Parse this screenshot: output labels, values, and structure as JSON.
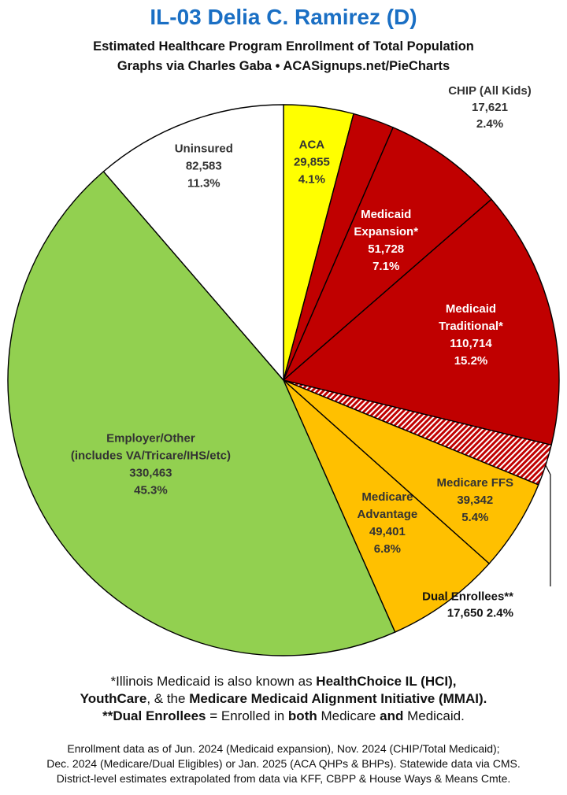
{
  "header": {
    "title": "IL-03 Delia C. Ramirez (D)",
    "title_color": "#1a6fc4",
    "subtitle_1": "Estimated Healthcare Program Enrollment of Total Population",
    "subtitle_2": "Graphs via Charles Gaba  •  ACASignups.net/PieCharts"
  },
  "chart_data": {
    "type": "pie",
    "start": "12 o'clock",
    "direction": "clockwise",
    "slices": [
      {
        "name": "ACA",
        "value": 29855,
        "percent": "4.1%",
        "color": "#ffff00",
        "lines": [
          "ACA",
          "29,855",
          "4.1%"
        ],
        "text_color": "#333333"
      },
      {
        "name": "CHIP (All Kids)",
        "value": 17621,
        "percent": "2.4%",
        "color": "#c00000",
        "lines": [
          "CHIP (All Kids)",
          "17,621",
          "2.4%"
        ],
        "text_color": "#333333",
        "outside": true
      },
      {
        "name": "Medicaid Expansion*",
        "value": 51728,
        "percent": "7.1%",
        "color": "#c00000",
        "lines": [
          "Medicaid",
          "Expansion*",
          "51,728",
          "7.1%"
        ],
        "text_color": "#ffffff"
      },
      {
        "name": "Medicaid Traditional*",
        "value": 110714,
        "percent": "15.2%",
        "color": "#c00000",
        "lines": [
          "Medicaid",
          "Traditional*",
          "110,714",
          "15.2%"
        ],
        "text_color": "#ffffff"
      },
      {
        "name": "Dual Enrollees**",
        "value": 17650,
        "percent": "2.4%",
        "color": "#c00000",
        "pattern": "hatch",
        "lines": [
          "Dual Enrollees**",
          "17,650 2.4%"
        ],
        "text_color": "#111111",
        "outside": true
      },
      {
        "name": "Medicare FFS",
        "value": 39342,
        "percent": "5.4%",
        "color": "#ffc000",
        "lines": [
          "Medicare FFS",
          "39,342",
          "5.4%"
        ],
        "text_color": "#333333"
      },
      {
        "name": "Medicare Advantage",
        "value": 49401,
        "percent": "6.8%",
        "color": "#ffc000",
        "lines": [
          "Medicare",
          "Advantage",
          "49,401",
          "6.8%"
        ],
        "text_color": "#333333"
      },
      {
        "name": "Employer/Other",
        "value": 330463,
        "percent": "45.3%",
        "color": "#92d050",
        "lines": [
          "Employer/Other",
          "(includes VA/Tricare/IHS/etc)",
          "330,463",
          "45.3%"
        ],
        "text_color": "#333333"
      },
      {
        "name": "Uninsured",
        "value": 82583,
        "percent": "11.3%",
        "color": "#ffffff",
        "lines": [
          "Uninsured",
          "82,583",
          "11.3%"
        ],
        "text_color": "#333333"
      }
    ]
  },
  "notes": {
    "n1_a": "*Illinois Medicaid is also known as ",
    "n1_b": "HealthChoice IL (HCI),",
    "n2_a": "YouthCare",
    "n2_b": ", & the ",
    "n2_c": "Medicare Medicaid Alignment Initiative (MMAI).",
    "n3_a": "**Dual Enrollees",
    "n3_b": " = Enrolled in ",
    "n3_c": "both",
    "n3_d": " Medicare ",
    "n3_e": "and",
    "n3_f": " Medicaid."
  },
  "footer": {
    "line1": "Enrollment data as of Jun. 2024 (Medicaid expansion), Nov. 2024 (CHIP/Total Medicaid);",
    "line2": "Dec. 2024 (Medicare/Dual Eligibles) or Jan. 2025 (ACA QHPs & BHPs). Statewide data via CMS.",
    "line3": "District-level estimates extrapolated from data via KFF, CBPP & House Ways & Means Cmte."
  }
}
